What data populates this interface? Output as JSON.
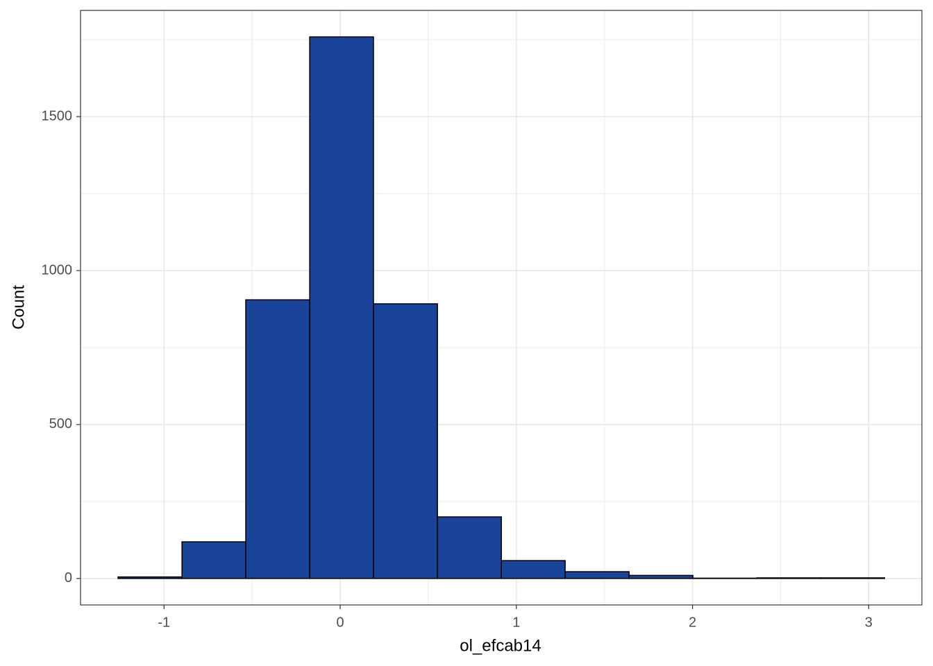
{
  "chart_data": {
    "type": "histogram",
    "x_label": "ol_efcab14",
    "y_label": "Count",
    "bins": [
      -1.261,
      -0.898,
      -0.536,
      -0.173,
      0.189,
      0.552,
      0.915,
      1.277,
      1.64,
      2.002,
      2.365,
      2.728,
      3.09
    ],
    "values": [
      5,
      119,
      905,
      1759,
      892,
      200,
      58,
      22,
      10,
      1,
      2,
      2
    ],
    "color": "#1a449a",
    "edge_color": "#000000",
    "xlim": [
      -1.474,
      3.302
    ],
    "ylim": [
      -86,
      1845
    ],
    "xticks": [
      -1,
      0,
      1,
      2,
      3
    ],
    "yticks": [
      0,
      500,
      1000,
      1500
    ],
    "x_minor_grid": [
      -0.5,
      0.5,
      1.5,
      2.5
    ],
    "y_minor_grid": [
      250,
      750,
      1250,
      1750
    ],
    "grid": true
  }
}
